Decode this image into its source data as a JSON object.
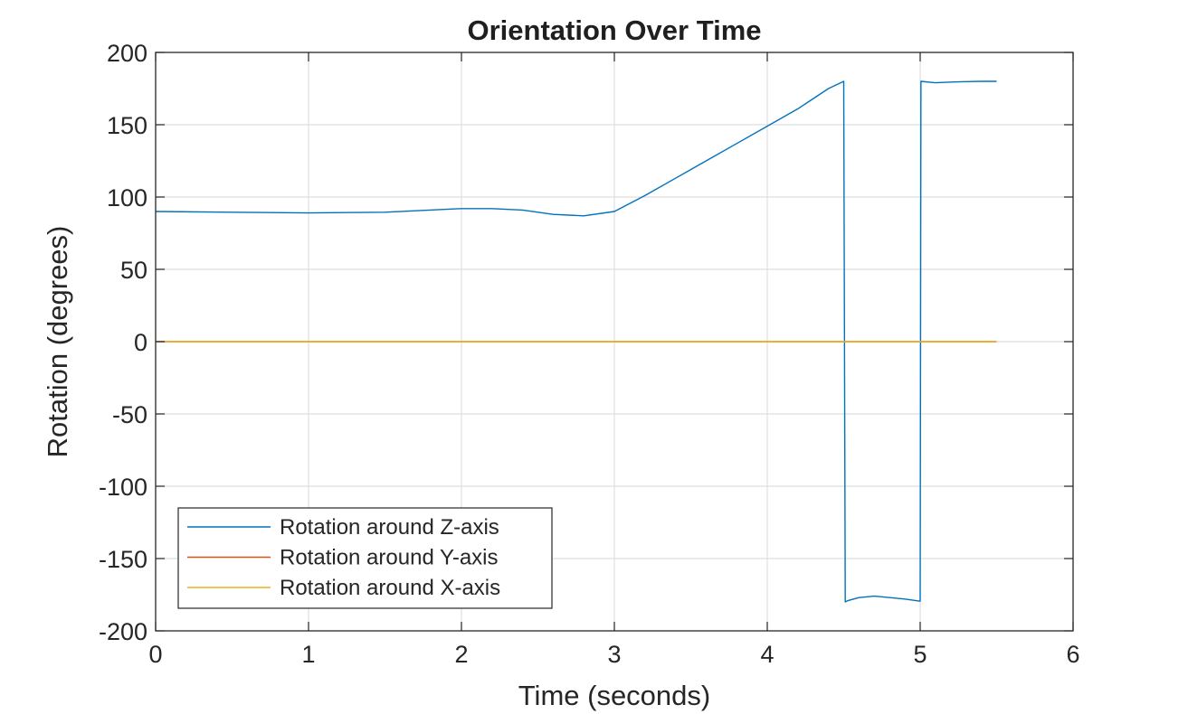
{
  "chart_data": {
    "type": "line",
    "title": "Orientation Over Time",
    "xlabel": "Time (seconds)",
    "ylabel": "Rotation (degrees)",
    "xlim": [
      0,
      6
    ],
    "ylim": [
      -200,
      200
    ],
    "xticks": [
      0,
      1,
      2,
      3,
      4,
      5,
      6
    ],
    "yticks": [
      -200,
      -150,
      -100,
      -50,
      0,
      50,
      100,
      150,
      200
    ],
    "grid": true,
    "legend_position": "bottom-left",
    "series": [
      {
        "name": "Rotation around Z-axis",
        "color": "#0072BD",
        "x": [
          0,
          0.5,
          1.0,
          1.5,
          2.0,
          2.2,
          2.4,
          2.6,
          2.8,
          3.0,
          3.2,
          3.4,
          3.6,
          3.8,
          4.0,
          4.2,
          4.4,
          4.5,
          4.51,
          4.53,
          4.6,
          4.7,
          4.8,
          4.9,
          5.0,
          5.005,
          5.1,
          5.2,
          5.3,
          5.4,
          5.5
        ],
        "y": [
          90,
          89.5,
          89,
          89.5,
          92,
          92,
          91,
          88,
          87,
          90,
          101,
          113,
          125,
          137,
          149,
          161,
          175,
          180,
          -180,
          -179,
          -177,
          -176,
          -177,
          -178,
          -179.5,
          180,
          179,
          179.5,
          179.8,
          180,
          180
        ]
      },
      {
        "name": "Rotation around Y-axis",
        "color": "#D95319",
        "x": [
          0,
          5.5
        ],
        "y": [
          0,
          0
        ]
      },
      {
        "name": "Rotation around X-axis",
        "color": "#EDB120",
        "x": [
          0,
          5.5
        ],
        "y": [
          0,
          0
        ]
      }
    ]
  }
}
